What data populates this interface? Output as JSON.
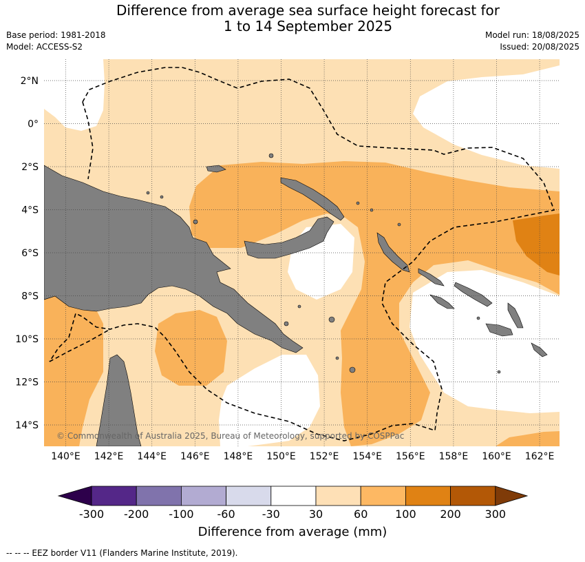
{
  "header": {
    "title_line1": "Difference from average sea surface height forecast for",
    "title_line2": "1 to 14 September 2025",
    "base_period": "Base period: 1981-2018",
    "model": "Model: ACCESS-S2",
    "model_run": "Model run: 18/08/2025",
    "issued": "Issued: 20/08/2025"
  },
  "map": {
    "lat_labels": [
      "2°N",
      "0°",
      "2°S",
      "4°S",
      "6°S",
      "8°S",
      "10°S",
      "12°S",
      "14°S"
    ],
    "lon_labels": [
      "140°E",
      "142°E",
      "144°E",
      "146°E",
      "148°E",
      "150°E",
      "152°E",
      "154°E",
      "156°E",
      "158°E",
      "160°E",
      "162°E"
    ],
    "copyright": "© Commonwealth of Australia 2025, Bureau of Meteorology, supported by COSPPac",
    "gridlines": true,
    "colors": {
      "land": "#808080",
      "ocean_neutral": "#ffffff",
      "band_30_60": "#fde0b4",
      "band_60_100": "#f9b25a",
      "band_100_200": "#e08214",
      "eez_border": "#000000"
    }
  },
  "colorbar": {
    "title": "Difference from average (mm)",
    "ticks": [
      "-300",
      "-200",
      "-100",
      "-60",
      "-30",
      "30",
      "60",
      "100",
      "200",
      "300"
    ],
    "colors": [
      "#2d004b",
      "#542788",
      "#8073ac",
      "#b2abd2",
      "#d8daeb",
      "#ffffff",
      "#fee0b6",
      "#fdb863",
      "#e08214",
      "#b35806",
      "#7f3b08"
    ]
  },
  "footer": {
    "legend_text": "--  --  -- EEZ border V11 (Flanders Marine Institute, 2019)."
  }
}
